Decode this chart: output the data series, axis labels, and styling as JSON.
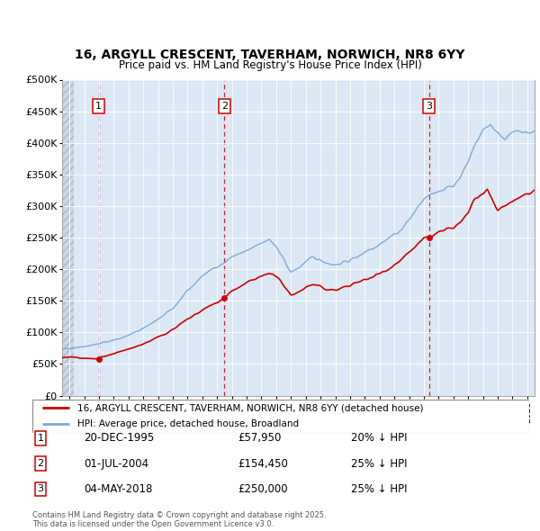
{
  "title1": "16, ARGYLL CRESCENT, TAVERHAM, NORWICH, NR8 6YY",
  "title2": "Price paid vs. HM Land Registry's House Price Index (HPI)",
  "legend1": "16, ARGYLL CRESCENT, TAVERHAM, NORWICH, NR8 6YY (detached house)",
  "legend2": "HPI: Average price, detached house, Broadland",
  "footer": "Contains HM Land Registry data © Crown copyright and database right 2025.\nThis data is licensed under the Open Government Licence v3.0.",
  "transactions": [
    {
      "num": 1,
      "date": "20-DEC-1995",
      "price": 57950,
      "pct": "20%",
      "x_year": 1995.97
    },
    {
      "num": 2,
      "date": "01-JUL-2004",
      "price": 154450,
      "pct": "25%",
      "x_year": 2004.5
    },
    {
      "num": 3,
      "date": "04-MAY-2018",
      "price": 250000,
      "pct": "25%",
      "x_year": 2018.34
    }
  ],
  "hpi_color": "#7aaadd",
  "price_color": "#cc0000",
  "ylim": [
    0,
    500000
  ],
  "yticks": [
    0,
    50000,
    100000,
    150000,
    200000,
    250000,
    300000,
    350000,
    400000,
    450000,
    500000
  ],
  "xlim_start": 1993.5,
  "xlim_end": 2025.5,
  "plot_bg": "#dce8f5",
  "grid_color": "#ffffff",
  "hatch_color": "#b0b8c8"
}
